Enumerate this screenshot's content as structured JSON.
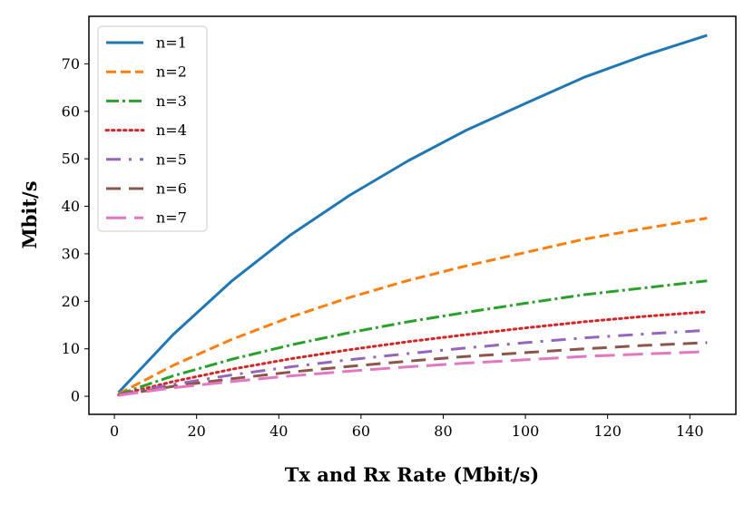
{
  "chart_data": {
    "type": "line",
    "title": "",
    "xlabel": "Tx and Rx Rate (Mbit/s)",
    "ylabel": "Mbit/s",
    "xlim": [
      -6.2,
      151.2
    ],
    "ylim": [
      -3.8,
      80.0
    ],
    "xticks": [
      0,
      20,
      40,
      60,
      80,
      100,
      120,
      140
    ],
    "yticks": [
      0,
      10,
      20,
      30,
      40,
      50,
      60,
      70
    ],
    "grid": false,
    "legend_position": "upper-left",
    "x": [
      1,
      14.3,
      28.6,
      42.9,
      57.2,
      71.5,
      85.8,
      100.1,
      114.4,
      128.7,
      144.2
    ],
    "series": [
      {
        "name": "n=1",
        "color": "#1f77b4",
        "style": "solid",
        "values": [
          0.8,
          13.0,
          24.3,
          34.0,
          42.3,
          49.6,
          56.1,
          61.7,
          67.2,
          71.7,
          76.0
        ]
      },
      {
        "name": "n=2",
        "color": "#ff7f0e",
        "style": "dashed",
        "values": [
          0.5,
          6.5,
          12.0,
          16.7,
          20.8,
          24.4,
          27.5,
          30.3,
          33.1,
          35.3,
          37.5
        ]
      },
      {
        "name": "n=3",
        "color": "#2ca02c",
        "style": "dashdot",
        "values": [
          0.4,
          4.3,
          7.8,
          10.8,
          13.4,
          15.7,
          17.7,
          19.6,
          21.4,
          22.8,
          24.3
        ]
      },
      {
        "name": "n=4",
        "color": "#d62728",
        "style": "dotted",
        "values": [
          0.3,
          3.1,
          5.7,
          7.9,
          9.8,
          11.5,
          13.0,
          14.4,
          15.7,
          16.8,
          17.8
        ]
      },
      {
        "name": "n=5",
        "color": "#9467bd",
        "style": "longdash-dot",
        "values": [
          0.3,
          2.5,
          4.5,
          6.2,
          7.7,
          9.0,
          10.2,
          11.3,
          12.3,
          13.1,
          13.9
        ]
      },
      {
        "name": "n=6",
        "color": "#8c564b",
        "style": "longdash-gap",
        "values": [
          0.2,
          2.1,
          3.7,
          5.1,
          6.3,
          7.4,
          8.4,
          9.2,
          10.0,
          10.7,
          11.3
        ]
      },
      {
        "name": "n=7",
        "color": "#e377c2",
        "style": "longdash",
        "values": [
          0.2,
          1.8,
          3.1,
          4.3,
          5.3,
          6.2,
          7.0,
          7.7,
          8.4,
          8.9,
          9.4
        ]
      }
    ]
  }
}
